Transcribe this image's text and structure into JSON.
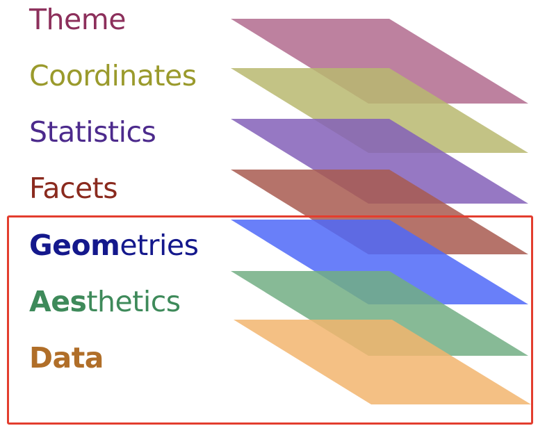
{
  "layers": [
    {
      "id": "theme",
      "bold": "",
      "rest": "Theme",
      "text_color": "#8c2f5b",
      "fill_color": "#b16b8e"
    },
    {
      "id": "coordinates",
      "bold": "",
      "rest": "Coordinates",
      "text_color": "#9a9a2c",
      "fill_color": "#b9b970"
    },
    {
      "id": "statistics",
      "bold": "",
      "rest": "Statistics",
      "text_color": "#4c2a8c",
      "fill_color": "#8460b8"
    },
    {
      "id": "facets",
      "bold": "",
      "rest": "Facets",
      "text_color": "#8a2a1e",
      "fill_color": "#a85b50"
    },
    {
      "id": "geometries",
      "bold": "Geom",
      "rest": "etries",
      "text_color": "#14188c",
      "fill_color": "#4f68f8"
    },
    {
      "id": "aesthetics",
      "bold": "Aes",
      "rest": "thetics",
      "text_color": "#3e8a5a",
      "fill_color": "#72ae84"
    },
    {
      "id": "data",
      "bold": "Data",
      "rest": "",
      "text_color": "#b06e28",
      "fill_color": "#f2b56e"
    }
  ],
  "highlight_color": "#e33d2e"
}
